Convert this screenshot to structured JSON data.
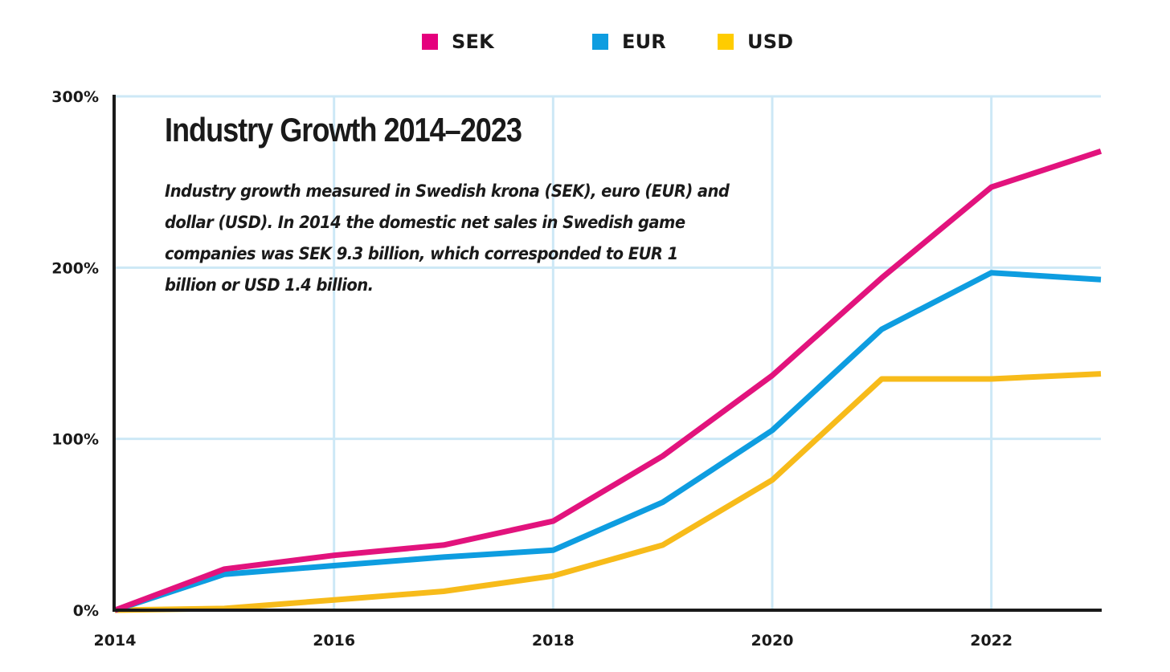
{
  "chart_data": {
    "type": "line",
    "title": "Industry Growth 2014–2023",
    "subtitle": "Industry growth measured in Swedish krona (SEK), euro (EUR) and dollar (USD). In 2014 the domestic net sales in Swedish game companies was SEK 9.3 billion, which corresponded to EUR 1 billion or USD 1.4 billion.",
    "xlabel": "",
    "ylabel": "",
    "x": [
      2014,
      2015,
      2016,
      2017,
      2018,
      2019,
      2020,
      2021,
      2022,
      2023
    ],
    "xlim": [
      2014,
      2023
    ],
    "ylim": [
      0,
      300
    ],
    "x_ticks": [
      {
        "value": 2014,
        "label": "2014"
      },
      {
        "value": 2016,
        "label": "2016"
      },
      {
        "value": 2018,
        "label": "2018"
      },
      {
        "value": 2020,
        "label": "2020"
      },
      {
        "value": 2022,
        "label": "2022"
      }
    ],
    "y_ticks": [
      {
        "value": 0,
        "label": "0%"
      },
      {
        "value": 100,
        "label": "100%"
      },
      {
        "value": 200,
        "label": "200%"
      },
      {
        "value": 300,
        "label": "300%"
      }
    ],
    "grid": true,
    "legend_position": "top-center",
    "series": [
      {
        "name": "SEK",
        "color": "#E2137D",
        "values": [
          0,
          24,
          32,
          38,
          52,
          90,
          137,
          194,
          247,
          268
        ]
      },
      {
        "name": "EUR",
        "color": "#0E9DE0",
        "values": [
          0,
          21,
          26,
          31,
          35,
          63,
          105,
          164,
          197,
          193
        ]
      },
      {
        "name": "USD",
        "color": "#F7BB1A",
        "values": [
          0,
          1,
          6,
          11,
          20,
          38,
          76,
          135,
          135,
          138
        ]
      }
    ],
    "legend": [
      {
        "label": "SEK",
        "color": "#E5007D"
      },
      {
        "label": "EUR",
        "color": "#0E9DE0"
      },
      {
        "label": "USD",
        "color": "#FFCC00"
      }
    ]
  },
  "colors": {
    "axis": "#1a1a1a",
    "grid": "#CDE8F6"
  }
}
